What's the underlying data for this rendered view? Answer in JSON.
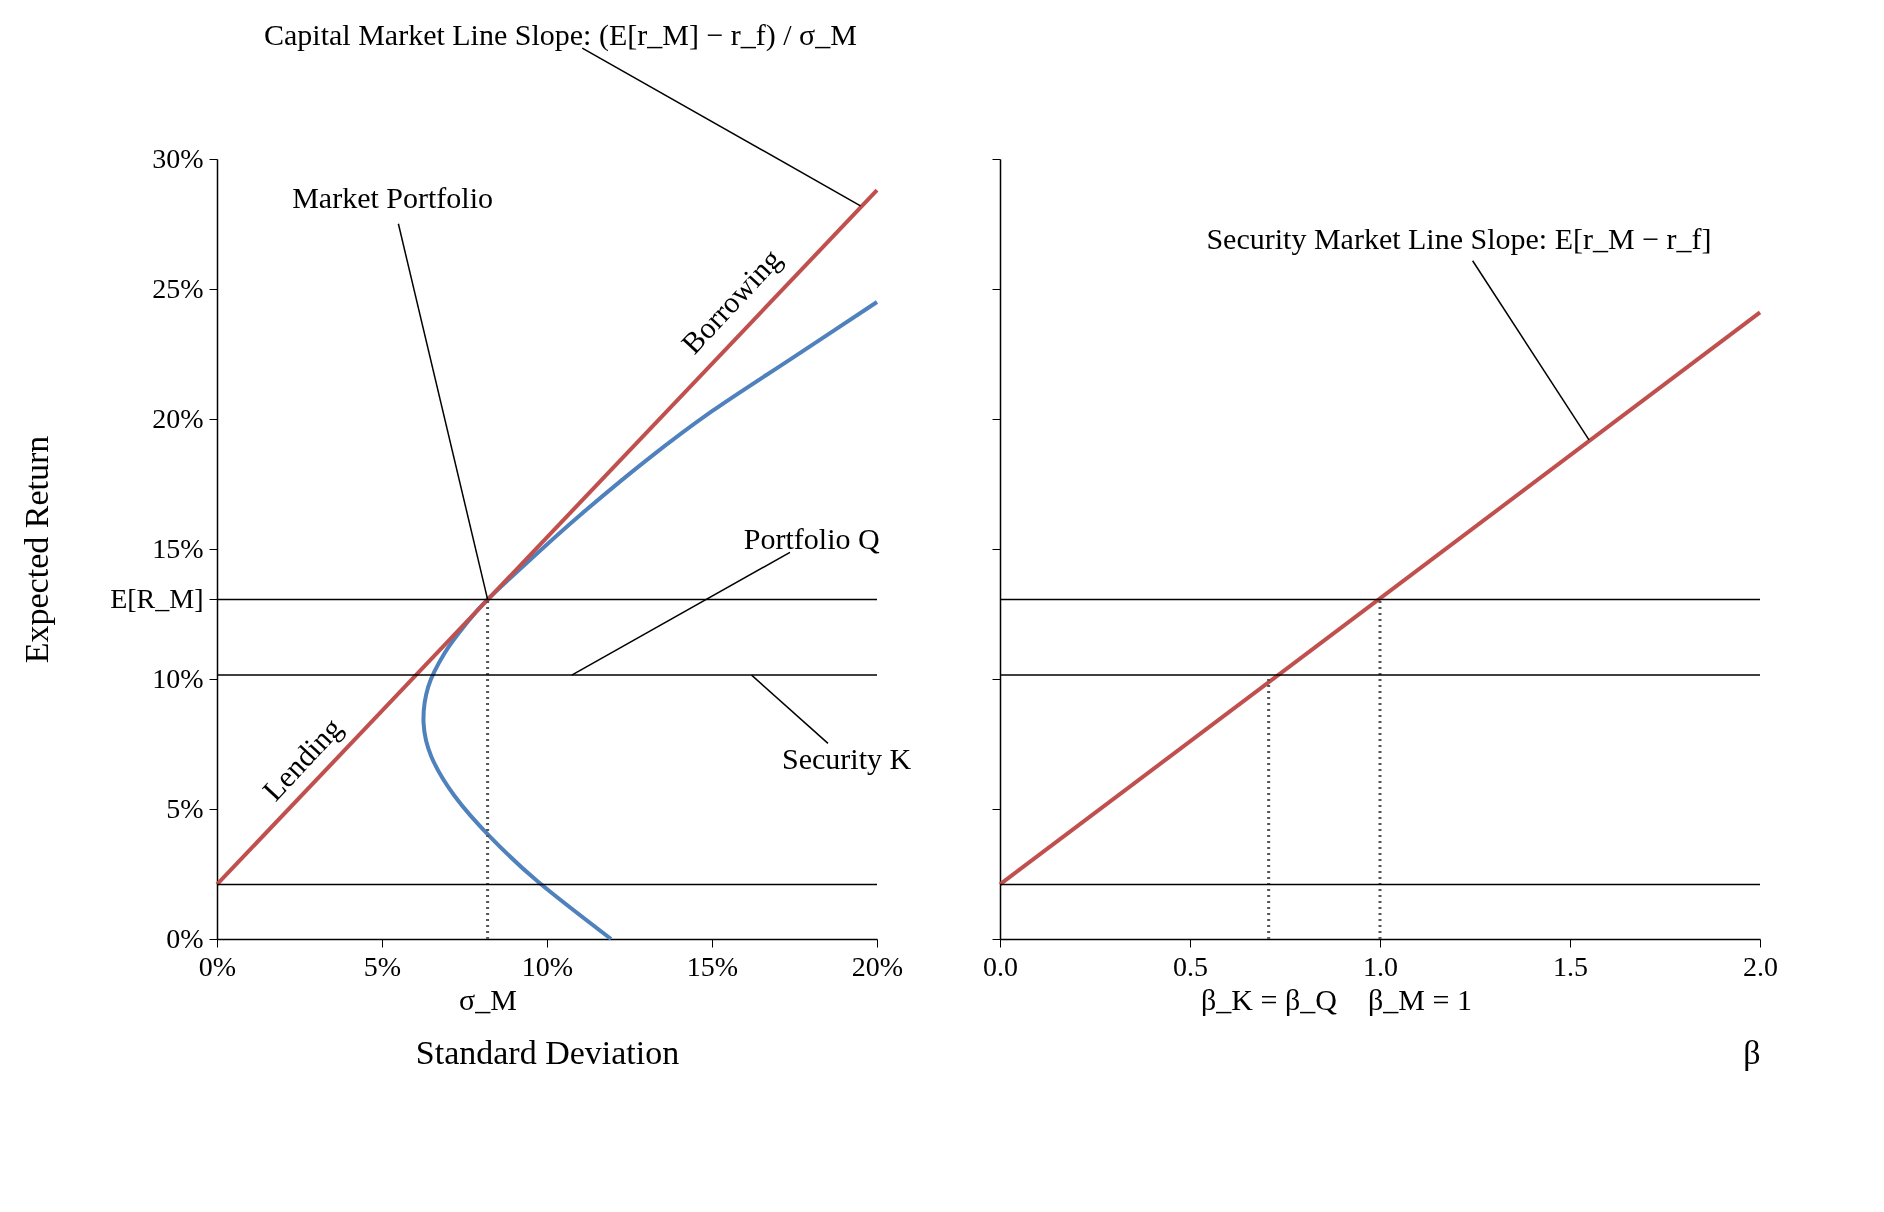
{
  "chart_data": [
    {
      "type": "line",
      "xlabel": "Standard Deviation",
      "ylabel": "Expected Return",
      "xlim": [
        0,
        20
      ],
      "ylim": [
        0,
        30
      ],
      "xticks": [
        {
          "value": 0,
          "label": "0%"
        },
        {
          "value": 5,
          "label": "5%"
        },
        {
          "value": 10,
          "label": "10%"
        },
        {
          "value": 15,
          "label": "15%"
        },
        {
          "value": 20,
          "label": "20%"
        }
      ],
      "yticks": [
        {
          "value": 0,
          "label": "0%"
        },
        {
          "value": 5,
          "label": "5%"
        },
        {
          "value": 10,
          "label": "10%"
        },
        {
          "value": 13.06,
          "label": "E[R_M]"
        },
        {
          "value": 15,
          "label": "15%"
        },
        {
          "value": 20,
          "label": "20%"
        },
        {
          "value": 25,
          "label": "25%"
        },
        {
          "value": 30,
          "label": "30%"
        }
      ],
      "series": [
        {
          "color": "#4f81bd",
          "x": [
            11.94,
            9.73,
            8.3,
            7.2,
            6.5,
            6.26,
            6.4,
            6.9,
            7.6,
            8.2,
            9.5,
            11,
            13,
            15,
            17.5,
            20
          ],
          "values": [
            0,
            2.2,
            3.9,
            5.5,
            7,
            8.3,
            9.7,
            11,
            12.2,
            13.06,
            14.6,
            16.3,
            18.4,
            20.3,
            22.4,
            24.5
          ]
        },
        {
          "color": "#c0504d",
          "x": [
            0,
            20
          ],
          "values": [
            2.1,
            28.8
          ]
        },
        {
          "color": "#555555",
          "line_style": "dotted",
          "x": [
            8.2,
            8.2
          ],
          "values": [
            0,
            13.06
          ]
        }
      ],
      "ref_lines": [
        {
          "axis": "y",
          "value": 13.06,
          "color": "#000000"
        },
        {
          "axis": "y",
          "value": 10.15,
          "color": "#000000"
        },
        {
          "axis": "y",
          "value": 2.1,
          "color": "#000000"
        }
      ],
      "grid": false,
      "annotations": [
        {
          "text": "Capital Market Line    Slope: (E[r_M] − r_f) / σ_M",
          "x": 19.5,
          "y": 28.2
        },
        {
          "text": "Market Portfolio",
          "x": 8.2,
          "y": 13.06
        },
        {
          "text": "Portfolio Q",
          "x": 10.75,
          "y": 10.15
        },
        {
          "text": "Security K",
          "x": 16.2,
          "y": 10.15
        },
        "Borrowing",
        "Lending",
        "σ_M"
      ]
    },
    {
      "type": "line",
      "xlabel": "β",
      "xlim": [
        0,
        2
      ],
      "ylim": [
        0,
        30
      ],
      "xticks": [
        {
          "value": 0,
          "label": "0.0"
        },
        {
          "value": 0.5,
          "label": "0.5"
        },
        {
          "value": 1,
          "label": "1.0"
        },
        {
          "value": 1.5,
          "label": "1.5"
        },
        {
          "value": 2,
          "label": "2.0"
        }
      ],
      "yticks": [
        0,
        5,
        10,
        15,
        20,
        25,
        30
      ],
      "tick_labels": "x",
      "series": [
        {
          "color": "#c0504d",
          "x": [
            0,
            2
          ],
          "values": [
            2.1,
            24.1
          ]
        },
        {
          "color": "#555555",
          "line_style": "dotted",
          "x": [
            1,
            1
          ],
          "values": [
            0,
            13.06
          ]
        },
        {
          "color": "#555555",
          "line_style": "dotted",
          "x": [
            0.707,
            0.707
          ],
          "values": [
            0,
            10.15
          ]
        }
      ],
      "ref_lines": [
        {
          "axis": "y",
          "value": 13.06,
          "color": "#000000"
        },
        {
          "axis": "y",
          "value": 10.15,
          "color": "#000000"
        },
        {
          "axis": "y",
          "value": 2.1,
          "color": "#000000"
        }
      ],
      "grid": false,
      "annotations": [
        {
          "text": "Security Market Line  Slope: E[r_M − r_f]",
          "x": 1.55,
          "y": 19.2
        },
        "β_K = β_Q",
        "β_M = 1"
      ]
    }
  ]
}
